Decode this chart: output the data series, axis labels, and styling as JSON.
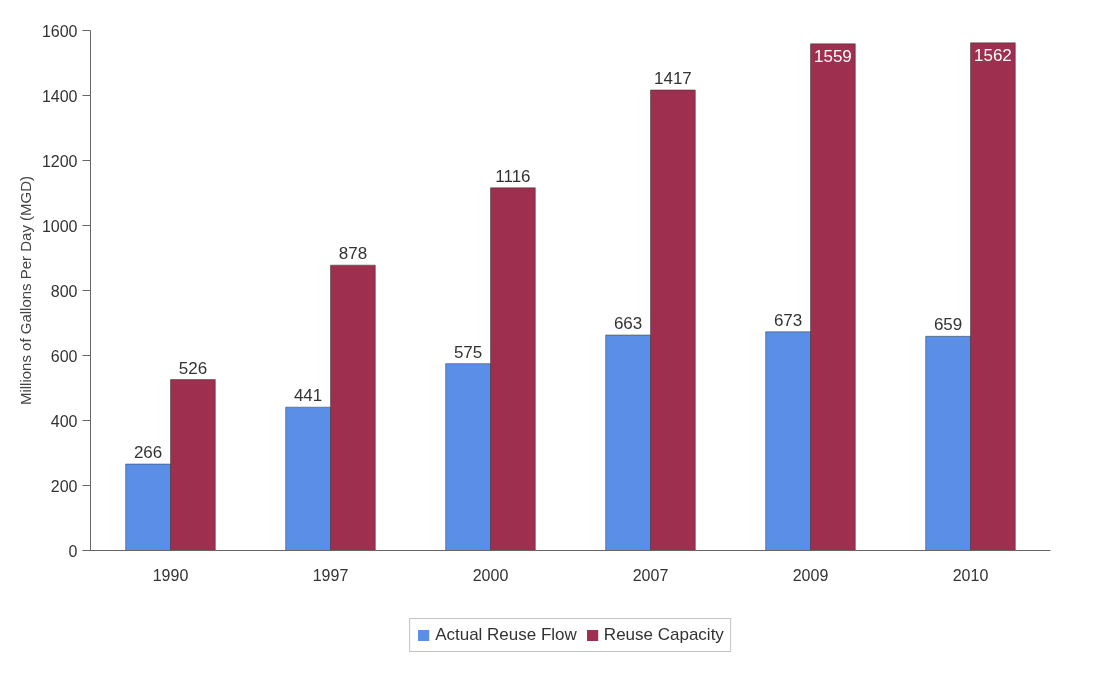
{
  "chart_data": {
    "type": "bar",
    "ylabel": "Millions of Gallons Per Day (MGD)",
    "categories": [
      "1990",
      "1997",
      "2000",
      "2007",
      "2009",
      "2010"
    ],
    "series": [
      {
        "name": "Actual Reuse Flow",
        "color": "#5b8ee6",
        "values": [
          266,
          441,
          575,
          663,
          673,
          659
        ]
      },
      {
        "name": "Reuse Capacity",
        "color": "#9e2f4f",
        "values": [
          526,
          878,
          1116,
          1417,
          1559,
          1562
        ]
      }
    ],
    "ylim": [
      0,
      1600
    ],
    "yticks": [
      0,
      200,
      400,
      600,
      800,
      1000,
      1200,
      1400,
      1600
    ],
    "data_labels": true,
    "legend": "bottom",
    "grid": false
  }
}
